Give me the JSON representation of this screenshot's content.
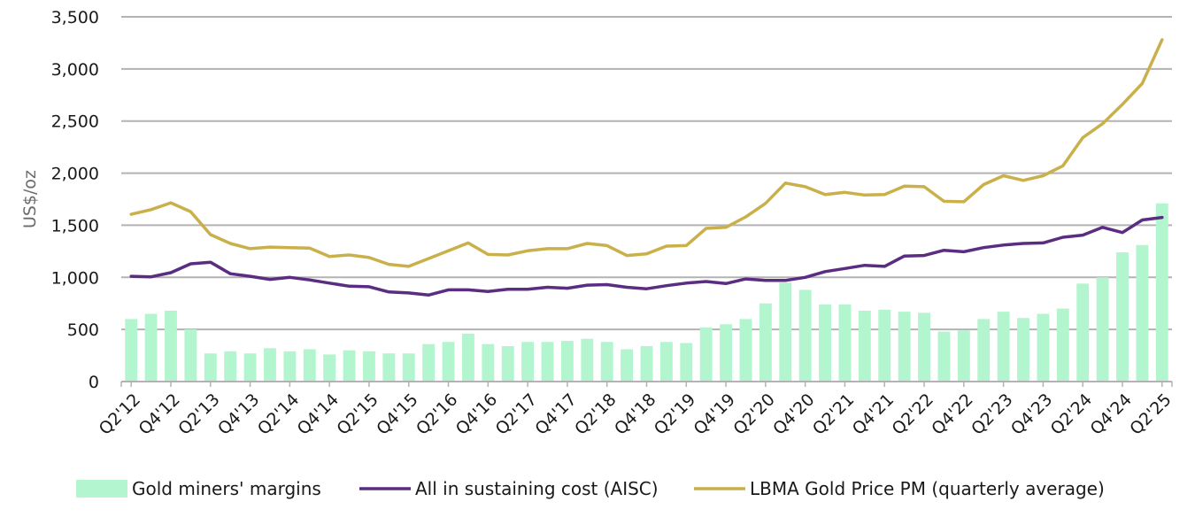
{
  "chart_data": {
    "type": "bar",
    "xlabel": "",
    "ylabel": "US$/oz",
    "ylim": [
      0,
      3500
    ],
    "yticks": [
      "0",
      "500",
      "1,000",
      "1,500",
      "2,000",
      "2,500",
      "3,000",
      "3,500"
    ],
    "grid": "horizontal",
    "legend_position": "bottom",
    "categories": [
      "Q2'12",
      "Q3'12",
      "Q4'12",
      "Q1'13",
      "Q2'13",
      "Q3'13",
      "Q4'13",
      "Q1'14",
      "Q2'14",
      "Q3'14",
      "Q4'14",
      "Q1'15",
      "Q2'15",
      "Q3'15",
      "Q4'15",
      "Q1'16",
      "Q2'16",
      "Q3'16",
      "Q4'16",
      "Q1'17",
      "Q2'17",
      "Q3'17",
      "Q4'17",
      "Q1'18",
      "Q2'18",
      "Q3'18",
      "Q4'18",
      "Q1'19",
      "Q2'19",
      "Q3'19",
      "Q4'19",
      "Q1'20",
      "Q2'20",
      "Q3'20",
      "Q4'20",
      "Q1'21",
      "Q2'21",
      "Q3'21",
      "Q4'21",
      "Q1'22",
      "Q2'22",
      "Q3'22",
      "Q4'22",
      "Q1'23",
      "Q2'23",
      "Q3'23",
      "Q4'23",
      "Q1'24",
      "Q2'24",
      "Q3'24",
      "Q4'24",
      "Q1'25",
      "Q2'25"
    ],
    "xtick_labels": [
      "Q2'12",
      "Q4'12",
      "Q2'13",
      "Q4'13",
      "Q2'14",
      "Q4'14",
      "Q2'15",
      "Q4'15",
      "Q2'16",
      "Q4'16",
      "Q2'17",
      "Q4'17",
      "Q2'18",
      "Q4'18",
      "Q2'19",
      "Q4'19",
      "Q2'20",
      "Q4'20",
      "Q2'21",
      "Q4'21",
      "Q2'22",
      "Q4'22",
      "Q2'23",
      "Q4'23",
      "Q2'24",
      "Q4'24",
      "Q2'25"
    ],
    "series": [
      {
        "name": "Gold miners' margins",
        "kind": "bar",
        "color": "#b3f5cf",
        "values": [
          600,
          650,
          680,
          500,
          270,
          290,
          270,
          320,
          290,
          310,
          260,
          300,
          290,
          270,
          270,
          360,
          380,
          460,
          360,
          340,
          380,
          380,
          390,
          410,
          380,
          310,
          340,
          380,
          370,
          520,
          550,
          600,
          750,
          950,
          880,
          740,
          740,
          680,
          690,
          670,
          660,
          480,
          490,
          600,
          670,
          610,
          650,
          700,
          940,
          1000,
          1240,
          1310,
          1710
        ]
      },
      {
        "name": "All in sustaining cost (AISC)",
        "kind": "line",
        "color": "#5b2d82",
        "values": [
          1010,
          1005,
          1045,
          1130,
          1145,
          1035,
          1010,
          980,
          1000,
          975,
          945,
          915,
          910,
          860,
          850,
          830,
          880,
          880,
          865,
          885,
          885,
          905,
          895,
          925,
          930,
          905,
          890,
          920,
          945,
          960,
          940,
          985,
          970,
          970,
          1000,
          1055,
          1085,
          1115,
          1105,
          1205,
          1210,
          1260,
          1245,
          1285,
          1310,
          1325,
          1330,
          1385,
          1405,
          1480,
          1430,
          1550,
          1575
        ]
      },
      {
        "name": "LBMA Gold Price PM (quarterly average)",
        "kind": "line",
        "color": "#c9b04a",
        "values": [
          1605,
          1650,
          1715,
          1630,
          1410,
          1325,
          1275,
          1290,
          1285,
          1280,
          1200,
          1215,
          1190,
          1125,
          1105,
          1180,
          1255,
          1330,
          1220,
          1215,
          1255,
          1275,
          1275,
          1325,
          1305,
          1210,
          1225,
          1300,
          1305,
          1470,
          1480,
          1580,
          1710,
          1905,
          1870,
          1795,
          1815,
          1790,
          1795,
          1875,
          1870,
          1730,
          1725,
          1890,
          1975,
          1930,
          1975,
          2070,
          2340,
          2475,
          2660,
          2860,
          3280
        ]
      }
    ]
  }
}
